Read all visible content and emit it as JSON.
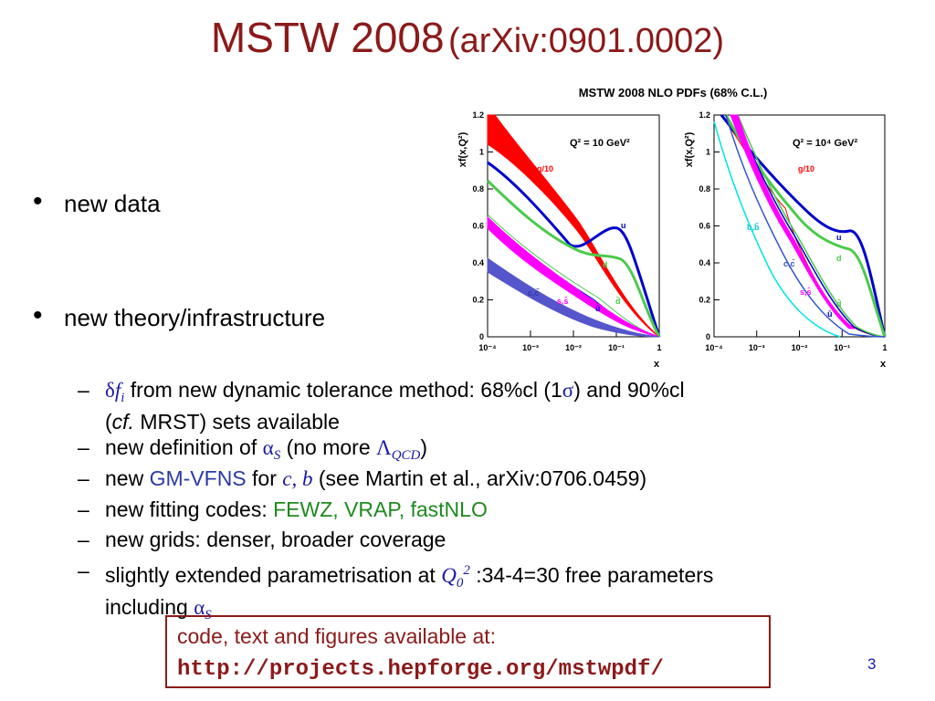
{
  "title": {
    "main": "MSTW 2008",
    "sub": "(arXiv:0901.0002)"
  },
  "bullets": [
    {
      "text": "new data"
    },
    {
      "text": "new theory/infrastructure"
    }
  ],
  "subbullets": {
    "dash": "–",
    "b1": {
      "sym_delta": "δ",
      "sym_f": "f",
      "sym_i": "i",
      "text1": " from new dynamic tolerance method: 68%cl  (1",
      "sigma": "σ",
      "text2": ") and 90%cl",
      "line2_open": "(",
      "cf": "cf.",
      "line2_rest": " MRST) sets available"
    },
    "b2": {
      "text1": "new definition of ",
      "alpha": "α",
      "alpha_sub": "S",
      "text2": " (no more ",
      "lambda": "Λ",
      "lambda_sub": "QCD",
      "text3": ")"
    },
    "b3": {
      "text1": "new ",
      "gmvfns": "GM-VFNS",
      "text2": " for ",
      "cb": "c, b",
      "text3": " (see Martin et al., arXiv:0706.0459)"
    },
    "b4": {
      "text1": "new fitting codes: ",
      "codes": "FEWZ, VRAP, fastNLO"
    },
    "b5": {
      "text": "new grids: denser, broader coverage"
    },
    "b6": {
      "text1": "slightly extended parametrisation at ",
      "q": "Q",
      "q_sub": "0",
      "q_sup": "2",
      "text2": " :34-4=30 free parameters",
      "line2": "including ",
      "alpha": "α",
      "alpha_sub": "S"
    }
  },
  "box": {
    "line1": "code, text and figures available at:",
    "line2": "http://projects.hepforge.org/mstwpdf/"
  },
  "page_number": "3",
  "figure": {
    "title": "MSTW 2008 NLO PDFs (68% C.L.)",
    "ylabel": "xf(x,Q²)",
    "xlabel": "x",
    "yticks": [
      "0",
      "0.2",
      "0.4",
      "0.6",
      "0.8",
      "1",
      "1.2"
    ],
    "xticks": [
      "10⁻⁴",
      "10⁻³",
      "10⁻²",
      "10⁻¹",
      "1"
    ],
    "left": {
      "q2": "Q² = 10 GeV²",
      "labels": {
        "g": "g/10",
        "u": "u",
        "d": "d",
        "ubar": "ū",
        "dbar": "d̄",
        "ss": "s,s̄",
        "cc": "c,c̄"
      }
    },
    "right": {
      "q2": "Q² = 10⁴ GeV²",
      "labels": {
        "g": "g/10",
        "u": "u",
        "d": "d",
        "ubar": "ū",
        "dbar": "d̄",
        "ss": "s,s̄",
        "cc": "c,c̄",
        "bb": "b,b̄"
      }
    }
  },
  "chart_data": [
    {
      "type": "line",
      "title": "MSTW 2008 NLO PDFs (68% C.L.)",
      "subtitle": "Q² = 10 GeV²",
      "xlabel": "x",
      "ylabel": "xf(x,Q²)",
      "xscale": "log",
      "xlim": [
        0.0001,
        1
      ],
      "ylim": [
        0,
        1.2
      ],
      "x": [
        0.0001,
        0.001,
        0.01,
        0.1,
        0.2,
        0.3,
        0.5,
        0.7
      ],
      "series": [
        {
          "name": "g/10",
          "color": "#ff0000",
          "band": true,
          "values": [
            1.2,
            0.88,
            0.57,
            0.18,
            0.09,
            0.04,
            0.01,
            0.0
          ]
        },
        {
          "name": "u",
          "color": "#0000cc",
          "values": [
            0.95,
            0.76,
            0.51,
            0.58,
            0.62,
            0.55,
            0.28,
            0.08
          ]
        },
        {
          "name": "d",
          "color": "#4cc94c",
          "values": [
            0.84,
            0.66,
            0.45,
            0.41,
            0.4,
            0.33,
            0.15,
            0.04
          ]
        },
        {
          "name": "ū",
          "color": "#0000cc",
          "values": [
            0.62,
            0.42,
            0.27,
            0.11,
            0.05,
            0.02,
            0.0,
            0.0
          ]
        },
        {
          "name": "d̄",
          "color": "#4cc94c",
          "values": [
            0.63,
            0.43,
            0.28,
            0.12,
            0.06,
            0.03,
            0.0,
            0.0
          ]
        },
        {
          "name": "s,s̄",
          "color": "#ff00ff",
          "band": true,
          "values": [
            0.65,
            0.45,
            0.28,
            0.08,
            0.03,
            0.01,
            0.0,
            0.0
          ]
        },
        {
          "name": "c,c̄",
          "color": "#5555cc",
          "band": true,
          "values": [
            0.37,
            0.26,
            0.15,
            0.04,
            0.01,
            0.0,
            0.0,
            0.0
          ]
        }
      ]
    },
    {
      "type": "line",
      "title": "MSTW 2008 NLO PDFs (68% C.L.)",
      "subtitle": "Q² = 10⁴ GeV²",
      "xlabel": "x",
      "ylabel": "xf(x,Q²)",
      "xscale": "log",
      "xlim": [
        0.0001,
        1
      ],
      "ylim": [
        0,
        1.2
      ],
      "x": [
        0.0001,
        0.001,
        0.01,
        0.1,
        0.2,
        0.3,
        0.5,
        0.7
      ],
      "series": [
        {
          "name": "g/10",
          "color": "#ff0000",
          "values": [
            1.2,
            1.2,
            1.1,
            0.26,
            0.1,
            0.04,
            0.01,
            0.0
          ]
        },
        {
          "name": "u",
          "color": "#0000cc",
          "values": [
            1.2,
            1.03,
            0.7,
            0.57,
            0.48,
            0.35,
            0.12,
            0.02
          ]
        },
        {
          "name": "d",
          "color": "#4cc94c",
          "values": [
            1.2,
            1.0,
            0.66,
            0.42,
            0.31,
            0.2,
            0.06,
            0.01
          ]
        },
        {
          "name": "ū",
          "color": "#0000cc",
          "values": [
            1.2,
            0.9,
            0.5,
            0.15,
            0.06,
            0.02,
            0.0,
            0.0
          ]
        },
        {
          "name": "d̄",
          "color": "#4cc94c",
          "values": [
            1.2,
            0.92,
            0.52,
            0.17,
            0.07,
            0.03,
            0.0,
            0.0
          ]
        },
        {
          "name": "s,s̄",
          "color": "#ff00ff",
          "band": true,
          "values": [
            1.2,
            0.86,
            0.46,
            0.11,
            0.04,
            0.01,
            0.0,
            0.0
          ]
        },
        {
          "name": "c,c̄",
          "color": "#3355cc",
          "values": [
            1.2,
            0.8,
            0.42,
            0.09,
            0.03,
            0.0,
            0.0,
            0.0
          ]
        },
        {
          "name": "b,b̄",
          "color": "#00e5e5",
          "values": [
            1.05,
            0.62,
            0.31,
            0.06,
            0.02,
            0.0,
            0.0,
            0.0
          ]
        }
      ]
    }
  ]
}
